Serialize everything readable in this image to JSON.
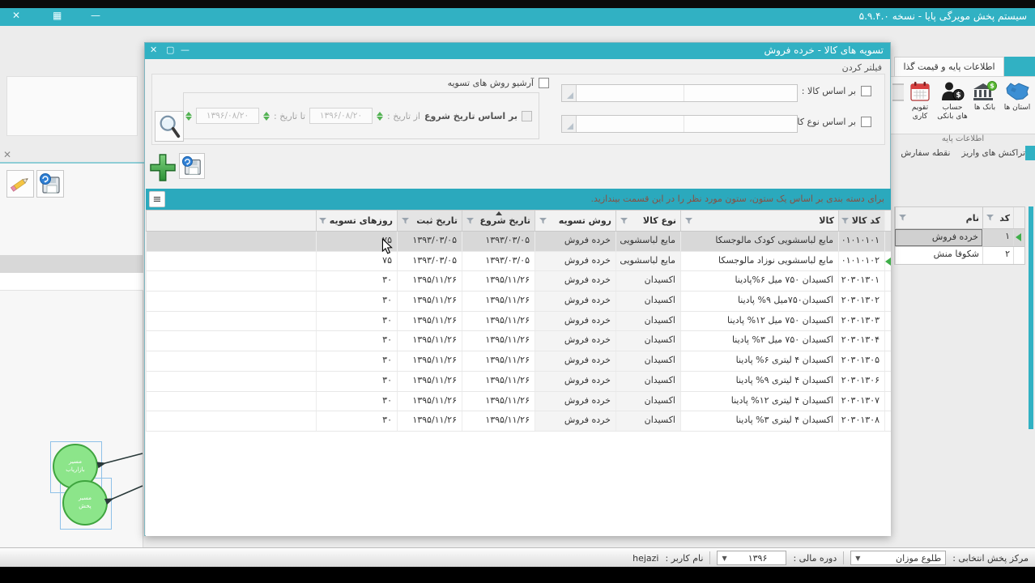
{
  "app": {
    "title": "سیستم پخش مویرگی پایا - نسخه ۵.۹.۴.۰"
  },
  "colors": {
    "teal": "#31b1c3",
    "group_panel_teal": "#2ba9bd",
    "hint_text": "#8a4f41",
    "selected_row": "#d8d8d8",
    "node_green": "#8ce58a",
    "node_border": "#3fa53f",
    "marker_green": "#3fae49"
  },
  "dialog": {
    "title": "تسویه های کالا - خرده فروش",
    "filter_section_label": "فیلتر کردن",
    "by_product_label": "بر اساس کالا :",
    "by_product_type_label": "بر اساس نوع کالا :",
    "archive_methods_label": "آرشیو روش های تسویه",
    "by_start_date_label": "بر اساس تاریخ شروع",
    "from_date_label": "از تاریخ :",
    "to_date_label": "تا تاریخ :",
    "from_date_value": "۱۳۹۶/۰۸/۲۰",
    "to_date_value": "۱۳۹۶/۰۸/۲۰",
    "group_hint": "برای دسته بندی بر اساس یک ستون، ستون مورد نظر را در این قسمت بیندازید.",
    "grid": {
      "columns": [
        "کد کالا",
        "کالا",
        "نوع کالا",
        "روش تسویه",
        "تاریخ شروع",
        "تاریخ ثبت",
        "روزهای تسویه"
      ],
      "rows": [
        [
          "۰۱۰۱۰۱۰۱",
          "مایع لباسشویی کودک  مالوجسکا",
          "مایع لباسشویی",
          "خرده فروش",
          "۱۳۹۳/۰۳/۰۵",
          "۱۳۹۳/۰۳/۰۵",
          "۷۵"
        ],
        [
          "۰۱۰۱۰۱۰۲",
          "مایع لباسشویی نوزاد مالوجسکا",
          "مایع لباسشویی",
          "خرده فروش",
          "۱۳۹۳/۰۳/۰۵",
          "۱۳۹۳/۰۳/۰۵",
          "۷۵"
        ],
        [
          "۲۰۳۰۱۳۰۱",
          "اکسیدان ۷۵۰ میل ۶%پادینا",
          "اکسیدان",
          "خرده فروش",
          "۱۳۹۵/۱۱/۲۶",
          "۱۳۹۵/۱۱/۲۶",
          "۳۰"
        ],
        [
          "۲۰۳۰۱۳۰۲",
          "اکسیدان۷۵۰میل ۹% پادینا",
          "اکسیدان",
          "خرده فروش",
          "۱۳۹۵/۱۱/۲۶",
          "۱۳۹۵/۱۱/۲۶",
          "۳۰"
        ],
        [
          "۲۰۳۰۱۳۰۳",
          "اکسیدان ۷۵۰ میل ۱۲% پادینا",
          "اکسیدان",
          "خرده فروش",
          "۱۳۹۵/۱۱/۲۶",
          "۱۳۹۵/۱۱/۲۶",
          "۳۰"
        ],
        [
          "۲۰۳۰۱۳۰۴",
          "اکسیدان ۷۵۰ میل ۳% پادینا",
          "اکسیدان",
          "خرده فروش",
          "۱۳۹۵/۱۱/۲۶",
          "۱۳۹۵/۱۱/۲۶",
          "۳۰"
        ],
        [
          "۲۰۳۰۱۳۰۵",
          "اکسیدان ۴ لیتری ۶% پادینا",
          "اکسیدان",
          "خرده فروش",
          "۱۳۹۵/۱۱/۲۶",
          "۱۳۹۵/۱۱/۲۶",
          "۳۰"
        ],
        [
          "۲۰۳۰۱۳۰۶",
          "اکسیدان ۴ لیتری ۹% پادینا",
          "اکسیدان",
          "خرده فروش",
          "۱۳۹۵/۱۱/۲۶",
          "۱۳۹۵/۱۱/۲۶",
          "۳۰"
        ],
        [
          "۲۰۳۰۱۳۰۷",
          "اکسیدان ۴ لیتری ۱۲% پادینا",
          "اکسیدان",
          "خرده فروش",
          "۱۳۹۵/۱۱/۲۶",
          "۱۳۹۵/۱۱/۲۶",
          "۳۰"
        ],
        [
          "۲۰۳۰۱۳۰۸",
          "اکسیدان ۴ لیتری ۳% پادینا",
          "اکسیدان",
          "خرده فروش",
          "۱۳۹۵/۱۱/۲۶",
          "۱۳۹۵/۱۱/۲۶",
          "۳۰"
        ]
      ]
    }
  },
  "ribbon": {
    "tab_label": "اطلاعات پایه و قیمت گذا",
    "items": [
      {
        "icon": "iran-map",
        "label": "استان ها"
      },
      {
        "icon": "bank",
        "label": "بانک ها"
      },
      {
        "icon": "bank-account",
        "label": "حساب های بانکی"
      },
      {
        "icon": "calendar",
        "label": "تقویم کاری"
      }
    ],
    "group_label": "اطلاعات پایه",
    "lower_tabs": [
      "تراکنش های واریز",
      "نقطه سفارش"
    ]
  },
  "side_grid": {
    "name_col": "نام",
    "code_col": "کد",
    "rows": [
      {
        "code": "۱",
        "name": "خرده فروش"
      },
      {
        "code": "۲",
        "name": "شکوفا منش"
      }
    ]
  },
  "diagram": {
    "nodes": [
      {
        "line1": "مسیر",
        "line2": "بازاریاب"
      },
      {
        "line1": "مسیر",
        "line2": "پخش"
      }
    ]
  },
  "statusbar": {
    "center_label": "مرکز پخش انتخابی :",
    "center_value": "طلوع موزان",
    "period_label": "دوره مالی :",
    "period_value": "۱۳۹۶",
    "user_label": "نام کاربر :",
    "user_value": "hejazi"
  }
}
